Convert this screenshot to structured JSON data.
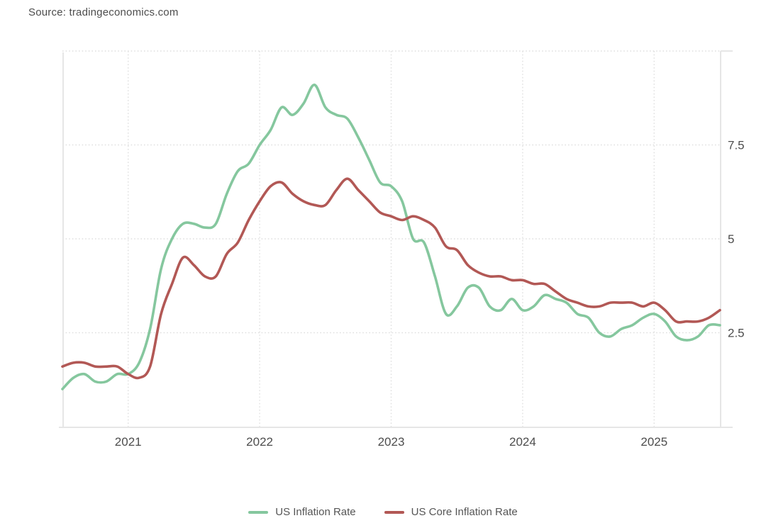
{
  "source": {
    "text": "Source: tradingeconomics.com"
  },
  "chart_data": {
    "type": "line",
    "title": "",
    "xlabel": "",
    "ylabel": "",
    "ylim": [
      0,
      10
    ],
    "grid": "dotted",
    "legend_position": "bottom",
    "x_start": "2020-07",
    "x_end": "2025-07",
    "x_tick_labels": [
      "2021",
      "2022",
      "2023",
      "2024",
      "2025"
    ],
    "x_tick_months": [
      6,
      18,
      30,
      42,
      54
    ],
    "y_grid_values": [
      2.5,
      5,
      7.5,
      10
    ],
    "y_ticks": [
      {
        "value": 2.5,
        "label": "2.5"
      },
      {
        "value": 5,
        "label": "5"
      },
      {
        "value": 7.5,
        "label": "7.5"
      }
    ],
    "colors": {
      "axis": "#e6e6e6",
      "grid": "#dfdfdf",
      "tick_text": "#4d4d4d"
    },
    "months": [
      "2020-07",
      "2020-08",
      "2020-09",
      "2020-10",
      "2020-11",
      "2020-12",
      "2021-01",
      "2021-02",
      "2021-03",
      "2021-04",
      "2021-05",
      "2021-06",
      "2021-07",
      "2021-08",
      "2021-09",
      "2021-10",
      "2021-11",
      "2021-12",
      "2022-01",
      "2022-02",
      "2022-03",
      "2022-04",
      "2022-05",
      "2022-06",
      "2022-07",
      "2022-08",
      "2022-09",
      "2022-10",
      "2022-11",
      "2022-12",
      "2023-01",
      "2023-02",
      "2023-03",
      "2023-04",
      "2023-05",
      "2023-06",
      "2023-07",
      "2023-08",
      "2023-09",
      "2023-10",
      "2023-11",
      "2023-12",
      "2024-01",
      "2024-02",
      "2024-03",
      "2024-04",
      "2024-05",
      "2024-06",
      "2024-07",
      "2024-08",
      "2024-09",
      "2024-10",
      "2024-11",
      "2024-12",
      "2025-01",
      "2025-02",
      "2025-03",
      "2025-04",
      "2025-05",
      "2025-06",
      "2025-07"
    ],
    "series": [
      {
        "name": "US Inflation Rate",
        "color": "#85c79e",
        "values": [
          1.0,
          1.3,
          1.4,
          1.2,
          1.2,
          1.4,
          1.4,
          1.7,
          2.6,
          4.2,
          5.0,
          5.4,
          5.4,
          5.3,
          5.4,
          6.2,
          6.8,
          7.0,
          7.5,
          7.9,
          8.5,
          8.3,
          8.6,
          9.1,
          8.5,
          8.3,
          8.2,
          7.7,
          7.1,
          6.5,
          6.4,
          6.0,
          5.0,
          4.9,
          4.0,
          3.0,
          3.2,
          3.7,
          3.7,
          3.2,
          3.1,
          3.4,
          3.1,
          3.2,
          3.5,
          3.4,
          3.3,
          3.0,
          2.9,
          2.5,
          2.4,
          2.6,
          2.7,
          2.9,
          3.0,
          2.8,
          2.4,
          2.3,
          2.4,
          2.7,
          2.7
        ]
      },
      {
        "name": "US Core Inflation Rate",
        "color": "#b25855",
        "values": [
          1.6,
          1.7,
          1.7,
          1.6,
          1.6,
          1.6,
          1.4,
          1.3,
          1.6,
          3.0,
          3.8,
          4.5,
          4.3,
          4.0,
          4.0,
          4.6,
          4.9,
          5.5,
          6.0,
          6.4,
          6.5,
          6.2,
          6.0,
          5.9,
          5.9,
          6.3,
          6.6,
          6.3,
          6.0,
          5.7,
          5.6,
          5.5,
          5.6,
          5.5,
          5.3,
          4.8,
          4.7,
          4.3,
          4.1,
          4.0,
          4.0,
          3.9,
          3.9,
          3.8,
          3.8,
          3.6,
          3.4,
          3.3,
          3.2,
          3.2,
          3.3,
          3.3,
          3.3,
          3.2,
          3.3,
          3.1,
          2.8,
          2.8,
          2.8,
          2.9,
          3.1
        ]
      }
    ]
  }
}
